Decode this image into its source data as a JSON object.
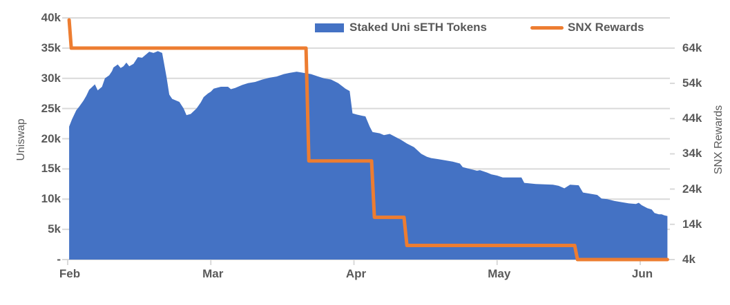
{
  "chart_data": {
    "type": "combo",
    "title": "",
    "colors": {
      "area_series": "#4472C4",
      "line_series": "#ED7D31",
      "grid": "#D9D9D9",
      "text": "#595959",
      "background": "#FFFFFF"
    },
    "legend": {
      "position": "top-inside",
      "entries": [
        "Staked Uni sETH Tokens",
        "SNX Rewards"
      ]
    },
    "left_axis": {
      "title": "Uniswap",
      "ylim": [
        0,
        40000
      ],
      "units": "thousands of tokens",
      "ticks": [
        {
          "label": "40k",
          "value": 40
        },
        {
          "label": "35k",
          "value": 35
        },
        {
          "label": "30k",
          "value": 30
        },
        {
          "label": "25k",
          "value": 25
        },
        {
          "label": "20k",
          "value": 20
        },
        {
          "label": "15k",
          "value": 15
        },
        {
          "label": "10k",
          "value": 10
        },
        {
          "label": "5k",
          "value": 5
        },
        {
          "label": "-",
          "value": 0
        }
      ]
    },
    "right_axis": {
      "title": "SNX Rewards",
      "ylim": [
        4000,
        64000
      ],
      "units": "thousands of SNX",
      "ticks": [
        {
          "label": "64k",
          "value": 64
        },
        {
          "label": "54k",
          "value": 54
        },
        {
          "label": "44k",
          "value": 44
        },
        {
          "label": "34k",
          "value": 34
        },
        {
          "label": "24k",
          "value": 24
        },
        {
          "label": "14k",
          "value": 14
        },
        {
          "label": "4k",
          "value": 4
        }
      ]
    },
    "x_axis": {
      "tick_labels": [
        "Feb",
        "Mar",
        "Apr",
        "May",
        "Jun"
      ],
      "units": "months (x below given as fractional months after the Feb tick)"
    },
    "series": [
      {
        "name": "Staked Uni sETH Tokens",
        "type": "area",
        "axis": "left",
        "color": "#4472C4",
        "values_in": "thousands",
        "points": [
          [
            0.01,
            22.0
          ],
          [
            0.03,
            23.2
          ],
          [
            0.06,
            24.7
          ],
          [
            0.08,
            25.3
          ],
          [
            0.11,
            26.3
          ],
          [
            0.13,
            27.1
          ],
          [
            0.15,
            28.1
          ],
          [
            0.19,
            29.0
          ],
          [
            0.21,
            28.0
          ],
          [
            0.24,
            28.6
          ],
          [
            0.26,
            30.0
          ],
          [
            0.29,
            30.5
          ],
          [
            0.31,
            31.2
          ],
          [
            0.32,
            31.8
          ],
          [
            0.35,
            32.3
          ],
          [
            0.37,
            31.7
          ],
          [
            0.39,
            32.0
          ],
          [
            0.41,
            32.6
          ],
          [
            0.43,
            32.0
          ],
          [
            0.46,
            32.4
          ],
          [
            0.49,
            33.5
          ],
          [
            0.52,
            33.4
          ],
          [
            0.54,
            33.8
          ],
          [
            0.57,
            34.4
          ],
          [
            0.6,
            34.2
          ],
          [
            0.63,
            34.5
          ],
          [
            0.66,
            34.2
          ],
          [
            0.69,
            30.3
          ],
          [
            0.71,
            27.3
          ],
          [
            0.73,
            26.6
          ],
          [
            0.76,
            26.3
          ],
          [
            0.78,
            26.1
          ],
          [
            0.81,
            25.0
          ],
          [
            0.83,
            23.9
          ],
          [
            0.86,
            24.1
          ],
          [
            0.9,
            25.0
          ],
          [
            0.93,
            26.0
          ],
          [
            0.95,
            26.9
          ],
          [
            0.98,
            27.5
          ],
          [
            1.0,
            27.8
          ],
          [
            1.02,
            28.3
          ],
          [
            1.07,
            28.6
          ],
          [
            1.12,
            28.6
          ],
          [
            1.14,
            28.2
          ],
          [
            1.17,
            28.4
          ],
          [
            1.22,
            28.9
          ],
          [
            1.26,
            29.2
          ],
          [
            1.31,
            29.4
          ],
          [
            1.36,
            29.8
          ],
          [
            1.41,
            30.1
          ],
          [
            1.46,
            30.3
          ],
          [
            1.51,
            30.7
          ],
          [
            1.55,
            30.9
          ],
          [
            1.6,
            31.1
          ],
          [
            1.65,
            30.9
          ],
          [
            1.7,
            30.7
          ],
          [
            1.75,
            30.3
          ],
          [
            1.79,
            30.0
          ],
          [
            1.84,
            29.8
          ],
          [
            1.89,
            29.2
          ],
          [
            1.94,
            28.3
          ],
          [
            1.97,
            27.9
          ],
          [
            1.99,
            24.2
          ],
          [
            2.02,
            24.0
          ],
          [
            2.06,
            23.8
          ],
          [
            2.08,
            23.7
          ],
          [
            2.11,
            22.0
          ],
          [
            2.13,
            21.1
          ],
          [
            2.18,
            20.9
          ],
          [
            2.21,
            20.6
          ],
          [
            2.25,
            20.8
          ],
          [
            2.29,
            20.3
          ],
          [
            2.33,
            19.8
          ],
          [
            2.37,
            19.2
          ],
          [
            2.42,
            18.6
          ],
          [
            2.47,
            17.5
          ],
          [
            2.51,
            17.0
          ],
          [
            2.54,
            16.8
          ],
          [
            2.62,
            16.5
          ],
          [
            2.69,
            16.2
          ],
          [
            2.74,
            15.9
          ],
          [
            2.76,
            15.3
          ],
          [
            2.81,
            15.0
          ],
          [
            2.86,
            14.7
          ],
          [
            2.88,
            14.8
          ],
          [
            2.93,
            14.4
          ],
          [
            2.96,
            14.1
          ],
          [
            3.0,
            13.9
          ],
          [
            3.04,
            13.6
          ],
          [
            3.17,
            13.6
          ],
          [
            3.19,
            12.7
          ],
          [
            3.27,
            12.5
          ],
          [
            3.39,
            12.4
          ],
          [
            3.43,
            12.2
          ],
          [
            3.47,
            11.8
          ],
          [
            3.51,
            12.4
          ],
          [
            3.57,
            12.3
          ],
          [
            3.6,
            11.1
          ],
          [
            3.65,
            10.9
          ],
          [
            3.7,
            10.7
          ],
          [
            3.73,
            10.1
          ],
          [
            3.77,
            10.0
          ],
          [
            3.82,
            9.7
          ],
          [
            3.87,
            9.5
          ],
          [
            3.92,
            9.3
          ],
          [
            3.97,
            9.2
          ],
          [
            3.99,
            9.4
          ],
          [
            4.01,
            9.0
          ],
          [
            4.05,
            8.5
          ],
          [
            4.08,
            8.3
          ],
          [
            4.1,
            7.7
          ],
          [
            4.13,
            7.5
          ],
          [
            4.15,
            7.5
          ],
          [
            4.17,
            7.3
          ],
          [
            4.19,
            7.2
          ]
        ]
      },
      {
        "name": "SNX Rewards",
        "type": "step_line",
        "axis": "right",
        "color": "#ED7D31",
        "values_in": "thousands",
        "points": [
          [
            0.01,
            72
          ],
          [
            0.025,
            64
          ],
          [
            1.665,
            64
          ],
          [
            1.685,
            32
          ],
          [
            2.123,
            32
          ],
          [
            2.143,
            16
          ],
          [
            2.35,
            16
          ],
          [
            2.37,
            8
          ],
          [
            3.542,
            8
          ],
          [
            3.562,
            4
          ],
          [
            4.19,
            4
          ]
        ]
      }
    ]
  }
}
